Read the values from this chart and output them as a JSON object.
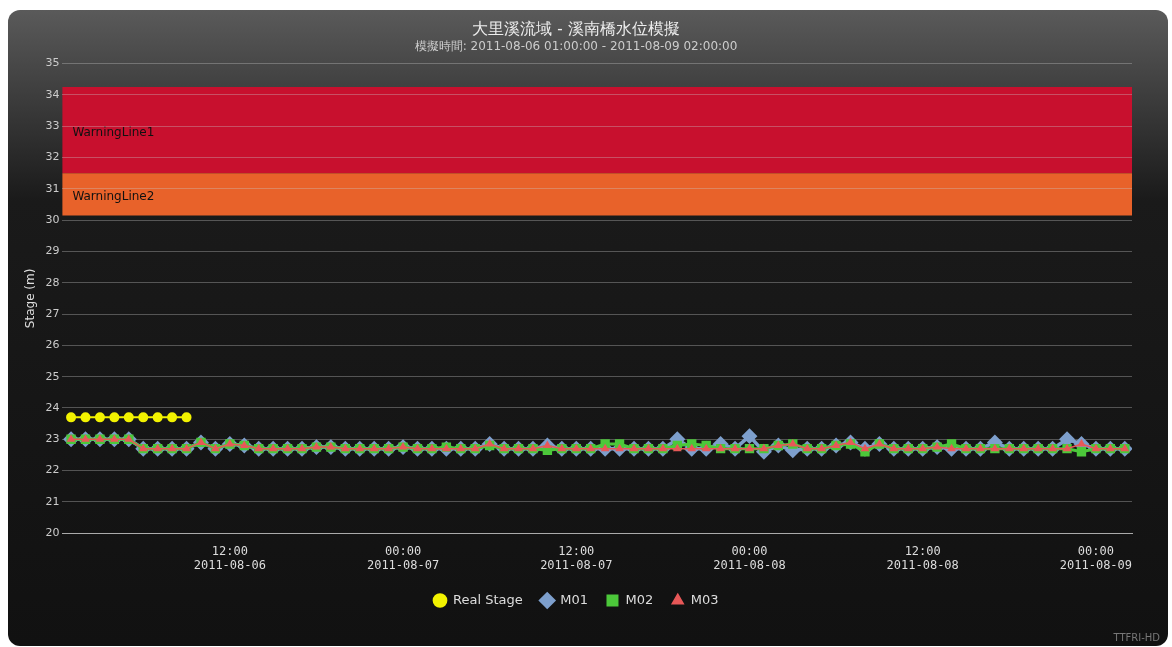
{
  "chart_data": {
    "type": "line",
    "title": "大里溪流域 - 溪南橋水位模擬",
    "subtitle": "模擬時間: 2011-08-06 01:00:00 - 2011-08-09 02:00:00",
    "ylabel": "Stage (m)",
    "x": [
      "2011-08-06T01:00",
      "2011-08-06T02:00",
      "2011-08-06T03:00",
      "2011-08-06T04:00",
      "2011-08-06T05:00",
      "2011-08-06T06:00",
      "2011-08-06T07:00",
      "2011-08-06T08:00",
      "2011-08-06T09:00",
      "2011-08-06T10:00",
      "2011-08-06T11:00",
      "2011-08-06T12:00",
      "2011-08-06T13:00",
      "2011-08-06T14:00",
      "2011-08-06T15:00",
      "2011-08-06T16:00",
      "2011-08-06T17:00",
      "2011-08-06T18:00",
      "2011-08-06T19:00",
      "2011-08-06T20:00",
      "2011-08-06T21:00",
      "2011-08-06T22:00",
      "2011-08-06T23:00",
      "2011-08-07T00:00",
      "2011-08-07T01:00",
      "2011-08-07T02:00",
      "2011-08-07T03:00",
      "2011-08-07T04:00",
      "2011-08-07T05:00",
      "2011-08-07T06:00",
      "2011-08-07T07:00",
      "2011-08-07T08:00",
      "2011-08-07T09:00",
      "2011-08-07T10:00",
      "2011-08-07T11:00",
      "2011-08-07T12:00",
      "2011-08-07T13:00",
      "2011-08-07T14:00",
      "2011-08-07T15:00",
      "2011-08-07T16:00",
      "2011-08-07T17:00",
      "2011-08-07T18:00",
      "2011-08-07T19:00",
      "2011-08-07T20:00",
      "2011-08-07T21:00",
      "2011-08-07T22:00",
      "2011-08-07T23:00",
      "2011-08-08T00:00",
      "2011-08-08T01:00",
      "2011-08-08T02:00",
      "2011-08-08T03:00",
      "2011-08-08T04:00",
      "2011-08-08T05:00",
      "2011-08-08T06:00",
      "2011-08-08T07:00",
      "2011-08-08T08:00",
      "2011-08-08T09:00",
      "2011-08-08T10:00",
      "2011-08-08T11:00",
      "2011-08-08T12:00",
      "2011-08-08T13:00",
      "2011-08-08T14:00",
      "2011-08-08T15:00",
      "2011-08-08T16:00",
      "2011-08-08T17:00",
      "2011-08-08T18:00",
      "2011-08-08T19:00",
      "2011-08-08T20:00",
      "2011-08-08T21:00",
      "2011-08-08T22:00",
      "2011-08-08T23:00",
      "2011-08-09T00:00",
      "2011-08-09T01:00",
      "2011-08-09T02:00"
    ],
    "series": [
      {
        "name": "Real Stage",
        "color": "#f2f200",
        "marker": "circle",
        "values": [
          23.7,
          23.7,
          23.7,
          23.7,
          23.7,
          23.7,
          23.7,
          23.7,
          23.7,
          null,
          null,
          null,
          null,
          null,
          null,
          null,
          null,
          null,
          null,
          null,
          null,
          null,
          null,
          null,
          null,
          null,
          null,
          null,
          null,
          null,
          null,
          null,
          null,
          null,
          null,
          null,
          null,
          null,
          null,
          null,
          null,
          null,
          null,
          null,
          null,
          null,
          null,
          null,
          null,
          null,
          null,
          null,
          null,
          null,
          null,
          null,
          null,
          null,
          null,
          null,
          null,
          null,
          null,
          null,
          null,
          null,
          null,
          null,
          null,
          null,
          null,
          null,
          null,
          null
        ]
      },
      {
        "name": "M01",
        "color": "#7d9fcc",
        "marker": "diamond",
        "values": [
          23.0,
          23.0,
          23.0,
          23.0,
          23.0,
          22.7,
          22.7,
          22.7,
          22.7,
          22.9,
          22.7,
          22.85,
          22.8,
          22.7,
          22.7,
          22.7,
          22.7,
          22.75,
          22.75,
          22.7,
          22.7,
          22.7,
          22.7,
          22.75,
          22.7,
          22.7,
          22.7,
          22.7,
          22.7,
          22.85,
          22.7,
          22.7,
          22.7,
          22.8,
          22.7,
          22.7,
          22.7,
          22.7,
          22.7,
          22.7,
          22.7,
          22.7,
          23.0,
          22.7,
          22.7,
          22.85,
          22.7,
          23.1,
          22.6,
          22.8,
          22.65,
          22.7,
          22.7,
          22.8,
          22.9,
          22.7,
          22.85,
          22.7,
          22.7,
          22.7,
          22.75,
          22.7,
          22.7,
          22.7,
          22.9,
          22.7,
          22.7,
          22.7,
          22.7,
          23.0,
          22.85,
          22.7,
          22.7,
          22.7
        ]
      },
      {
        "name": "M02",
        "color": "#4cc83a",
        "marker": "square",
        "values": [
          23.0,
          23.0,
          23.0,
          23.0,
          23.0,
          22.7,
          22.7,
          22.7,
          22.7,
          22.9,
          22.7,
          22.85,
          22.8,
          22.7,
          22.7,
          22.7,
          22.7,
          22.75,
          22.75,
          22.7,
          22.7,
          22.7,
          22.7,
          22.75,
          22.7,
          22.7,
          22.75,
          22.7,
          22.7,
          22.8,
          22.7,
          22.7,
          22.7,
          22.65,
          22.7,
          22.7,
          22.7,
          22.85,
          22.85,
          22.7,
          22.7,
          22.7,
          22.8,
          22.85,
          22.8,
          22.7,
          22.7,
          22.7,
          22.7,
          22.8,
          22.85,
          22.7,
          22.7,
          22.8,
          22.85,
          22.6,
          22.85,
          22.7,
          22.7,
          22.7,
          22.75,
          22.85,
          22.7,
          22.7,
          22.7,
          22.7,
          22.7,
          22.7,
          22.7,
          22.7,
          22.6,
          22.7,
          22.7,
          22.7
        ]
      },
      {
        "name": "M03",
        "color": "#e85858",
        "marker": "triangle",
        "values": [
          23.0,
          23.0,
          23.0,
          23.0,
          23.0,
          22.7,
          22.7,
          22.7,
          22.7,
          22.9,
          22.7,
          22.85,
          22.8,
          22.7,
          22.7,
          22.7,
          22.7,
          22.75,
          22.75,
          22.7,
          22.7,
          22.7,
          22.7,
          22.75,
          22.7,
          22.7,
          22.7,
          22.7,
          22.7,
          22.85,
          22.7,
          22.7,
          22.7,
          22.8,
          22.7,
          22.7,
          22.7,
          22.7,
          22.7,
          22.7,
          22.7,
          22.7,
          22.7,
          22.7,
          22.7,
          22.7,
          22.7,
          22.7,
          22.7,
          22.8,
          22.85,
          22.7,
          22.7,
          22.8,
          22.9,
          22.7,
          22.85,
          22.7,
          22.7,
          22.7,
          22.75,
          22.7,
          22.7,
          22.7,
          22.7,
          22.7,
          22.7,
          22.7,
          22.7,
          22.7,
          22.85,
          22.7,
          22.7,
          22.7
        ]
      }
    ],
    "xlim": [
      "2011-08-06T00:24",
      "2011-08-09T02:30"
    ],
    "xticks": [
      {
        "value": "2011-08-06T12:00",
        "label": "12:00\n2011-08-06"
      },
      {
        "value": "2011-08-07T00:00",
        "label": "00:00\n2011-08-07"
      },
      {
        "value": "2011-08-07T12:00",
        "label": "12:00\n2011-08-07"
      },
      {
        "value": "2011-08-08T00:00",
        "label": "00:00\n2011-08-08"
      },
      {
        "value": "2011-08-08T12:00",
        "label": "12:00\n2011-08-08"
      },
      {
        "value": "2011-08-09T00:00",
        "label": "00:00\n2011-08-09"
      }
    ],
    "ylim": [
      20,
      35
    ],
    "yticks": [
      20,
      21,
      22,
      23,
      24,
      25,
      26,
      27,
      28,
      29,
      30,
      31,
      32,
      33,
      34,
      35
    ],
    "bands": [
      {
        "axis": "y",
        "from": 31.5,
        "to": 34.25,
        "label": "WarningLine1",
        "color": "#c8102e"
      },
      {
        "axis": "y",
        "from": 30.15,
        "to": 31.5,
        "label": "WarningLine2",
        "color": "#e8622a"
      }
    ],
    "grid": "y",
    "legend": "bottom",
    "line_style": "solid",
    "annotations": [
      "TTFRI-HD"
    ]
  }
}
